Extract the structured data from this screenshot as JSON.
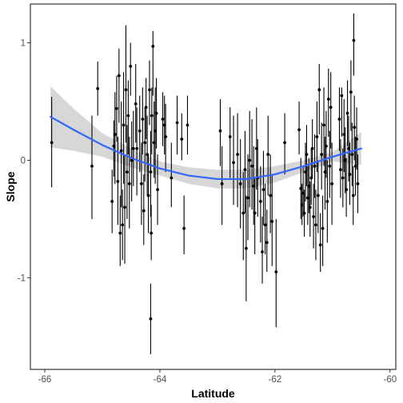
{
  "chart_data": {
    "type": "scatter",
    "title": "",
    "xlabel": "Latitude",
    "ylabel": "Slope",
    "xlim": [
      -66.25,
      -59.9
    ],
    "ylim": [
      -1.78,
      1.33
    ],
    "x_ticks": [
      -66,
      -64,
      -62,
      -60
    ],
    "y_ticks": [
      -1,
      0,
      1
    ],
    "grid": false,
    "colors": {
      "points": "#000000",
      "smooth_line": "#3366FF",
      "ribbon": "#BEBEBE",
      "axis": "#333333"
    },
    "points": [
      {
        "x": -65.88,
        "y": 0.15,
        "lo": -0.23,
        "hi": 0.54
      },
      {
        "x": -65.18,
        "y": -0.05,
        "lo": -0.5,
        "hi": 0.38
      },
      {
        "x": -65.08,
        "y": 0.61,
        "lo": 0.38,
        "hi": 0.84
      },
      {
        "x": -64.83,
        "y": -0.35,
        "lo": -0.62,
        "hi": -0.08
      },
      {
        "x": -64.8,
        "y": 0.12,
        "lo": -0.14,
        "hi": 0.34
      },
      {
        "x": -64.78,
        "y": 0.22,
        "lo": -0.2,
        "hi": 0.58
      },
      {
        "x": -64.75,
        "y": 0.44,
        "lo": 0.16,
        "hi": 0.72
      },
      {
        "x": -64.73,
        "y": -0.18,
        "lo": -0.55,
        "hi": 0.2
      },
      {
        "x": -64.71,
        "y": 0.72,
        "lo": 0.32,
        "hi": 0.95
      },
      {
        "x": -64.69,
        "y": -0.62,
        "lo": -0.9,
        "hi": -0.3
      },
      {
        "x": -64.67,
        "y": 0.08,
        "lo": -0.4,
        "hi": 0.5
      },
      {
        "x": -64.65,
        "y": -0.55,
        "lo": -0.85,
        "hi": -0.25
      },
      {
        "x": -64.63,
        "y": 0.3,
        "lo": -0.2,
        "hi": 0.75
      },
      {
        "x": -64.61,
        "y": -0.4,
        "lo": -0.88,
        "hi": 0.05
      },
      {
        "x": -64.59,
        "y": 0.6,
        "lo": 0.15,
        "hi": 1.15
      },
      {
        "x": -64.57,
        "y": -0.1,
        "lo": -0.5,
        "hi": 0.3
      },
      {
        "x": -64.55,
        "y": 0.38,
        "lo": 0.05,
        "hi": 0.68
      },
      {
        "x": -64.53,
        "y": -0.2,
        "lo": -0.58,
        "hi": 0.2
      },
      {
        "x": -64.51,
        "y": 0.8,
        "lo": 0.55,
        "hi": 1.0
      },
      {
        "x": -64.49,
        "y": 0.0,
        "lo": -0.35,
        "hi": 0.33
      },
      {
        "x": -64.46,
        "y": 0.1,
        "lo": -0.22,
        "hi": 0.42
      },
      {
        "x": -64.42,
        "y": 0.48,
        "lo": 0.15,
        "hi": 0.82
      },
      {
        "x": -64.4,
        "y": 0.1,
        "lo": -0.3,
        "hi": 0.45
      },
      {
        "x": -64.35,
        "y": 0.25,
        "lo": -0.1,
        "hi": 0.55
      },
      {
        "x": -64.32,
        "y": -0.2,
        "lo": -0.55,
        "hi": 0.15
      },
      {
        "x": -64.3,
        "y": 0.35,
        "lo": 0.05,
        "hi": 0.62
      },
      {
        "x": -64.28,
        "y": -0.43,
        "lo": -0.72,
        "hi": -0.12
      },
      {
        "x": -64.26,
        "y": 0.15,
        "lo": -0.18,
        "hi": 0.45
      },
      {
        "x": -64.24,
        "y": 0.45,
        "lo": 0.18,
        "hi": 0.7
      },
      {
        "x": -64.22,
        "y": 0.05,
        "lo": -0.3,
        "hi": 0.38
      },
      {
        "x": -64.2,
        "y": -0.3,
        "lo": -0.62,
        "hi": 0.05
      },
      {
        "x": -64.18,
        "y": 0.6,
        "lo": 0.3,
        "hi": 0.85
      },
      {
        "x": -64.16,
        "y": -0.1,
        "lo": -0.48,
        "hi": 0.25
      },
      {
        "x": -64.15,
        "y": -0.62,
        "lo": -0.85,
        "hi": -0.38
      },
      {
        "x": -64.14,
        "y": 0.38,
        "lo": 0.05,
        "hi": 0.62
      },
      {
        "x": -64.12,
        "y": 0.97,
        "lo": 0.55,
        "hi": 1.1
      },
      {
        "x": -64.1,
        "y": 0.15,
        "lo": -0.15,
        "hi": 0.5
      },
      {
        "x": -64.08,
        "y": 0.25,
        "lo": -0.2,
        "hi": 0.62
      },
      {
        "x": -64.06,
        "y": 0.4,
        "lo": 0.1,
        "hi": 0.7
      },
      {
        "x": -64.04,
        "y": -0.25,
        "lo": -0.55,
        "hi": 0.05
      },
      {
        "x": -64.16,
        "y": -1.35,
        "lo": -1.65,
        "hi": -1.05
      },
      {
        "x": -63.95,
        "y": 0.35,
        "lo": 0.12,
        "hi": 0.58
      },
      {
        "x": -63.92,
        "y": 0.3,
        "lo": 0.05,
        "hi": 0.55
      },
      {
        "x": -63.9,
        "y": 0.2,
        "lo": -0.1,
        "hi": 0.48
      },
      {
        "x": -63.8,
        "y": -0.15,
        "lo": -0.4,
        "hi": 0.15
      },
      {
        "x": -63.7,
        "y": 0.32,
        "lo": 0.05,
        "hi": 0.55
      },
      {
        "x": -63.62,
        "y": 0.18,
        "lo": 0.0,
        "hi": 0.4
      },
      {
        "x": -63.58,
        "y": -0.58,
        "lo": -0.8,
        "hi": -0.3
      },
      {
        "x": -63.52,
        "y": 0.3,
        "lo": 0.05,
        "hi": 0.55
      },
      {
        "x": -62.95,
        "y": 0.25,
        "lo": -0.05,
        "hi": 0.52
      },
      {
        "x": -62.92,
        "y": -0.2,
        "lo": -0.55,
        "hi": 0.12
      },
      {
        "x": -62.78,
        "y": 0.2,
        "lo": -0.15,
        "hi": 0.45
      },
      {
        "x": -62.72,
        "y": -0.02,
        "lo": -0.38,
        "hi": 0.38
      },
      {
        "x": -62.65,
        "y": 0.05,
        "lo": -0.4,
        "hi": 0.4
      },
      {
        "x": -62.6,
        "y": -0.2,
        "lo": -0.58,
        "hi": 0.18
      },
      {
        "x": -62.55,
        "y": -0.45,
        "lo": -0.85,
        "hi": -0.1
      },
      {
        "x": -62.52,
        "y": -0.08,
        "lo": -0.45,
        "hi": 0.25
      },
      {
        "x": -62.5,
        "y": -0.75,
        "lo": -1.2,
        "hi": -0.3
      },
      {
        "x": -62.47,
        "y": -0.32,
        "lo": -0.68,
        "hi": 0.05
      },
      {
        "x": -62.44,
        "y": 0.0,
        "lo": -0.4,
        "hi": 0.42
      },
      {
        "x": -62.4,
        "y": -0.05,
        "lo": -0.42,
        "hi": 0.35
      },
      {
        "x": -62.37,
        "y": -0.22,
        "lo": -0.55,
        "hi": 0.12
      },
      {
        "x": -62.35,
        "y": -0.45,
        "lo": -0.8,
        "hi": -0.15
      },
      {
        "x": -62.32,
        "y": 0.1,
        "lo": -0.25,
        "hi": 0.45
      },
      {
        "x": -62.3,
        "y": -0.15,
        "lo": -0.48,
        "hi": 0.18
      },
      {
        "x": -62.25,
        "y": -0.35,
        "lo": -0.7,
        "hi": -0.05
      },
      {
        "x": -62.22,
        "y": -0.78,
        "lo": -1.05,
        "hi": -0.48
      },
      {
        "x": -62.2,
        "y": -0.25,
        "lo": -0.55,
        "hi": 0.08
      },
      {
        "x": -62.17,
        "y": -0.55,
        "lo": -0.8,
        "hi": -0.2
      },
      {
        "x": -62.14,
        "y": -0.7,
        "lo": -0.95,
        "hi": -0.42
      },
      {
        "x": -62.12,
        "y": 0.05,
        "lo": -0.3,
        "hi": 0.38
      },
      {
        "x": -62.08,
        "y": -0.3,
        "lo": -0.62,
        "hi": 0.05
      },
      {
        "x": -62.05,
        "y": -0.52,
        "lo": -0.9,
        "hi": -0.12
      },
      {
        "x": -61.98,
        "y": -0.95,
        "lo": -1.42,
        "hi": -0.5
      },
      {
        "x": -61.83,
        "y": 0.15,
        "lo": -0.12,
        "hi": 0.4
      },
      {
        "x": -61.58,
        "y": 0.26,
        "lo": 0.05,
        "hi": 0.5
      },
      {
        "x": -61.55,
        "y": -0.24,
        "lo": -0.5,
        "hi": 0.02
      },
      {
        "x": -61.53,
        "y": -0.38,
        "lo": -0.55,
        "hi": -0.2
      },
      {
        "x": -61.51,
        "y": -0.28,
        "lo": -0.48,
        "hi": -0.05
      },
      {
        "x": -61.49,
        "y": -0.45,
        "lo": -0.65,
        "hi": -0.25
      },
      {
        "x": -61.47,
        "y": -0.1,
        "lo": -0.35,
        "hi": 0.15
      },
      {
        "x": -61.45,
        "y": 0.05,
        "lo": -0.22,
        "hi": 0.3
      },
      {
        "x": -61.43,
        "y": -0.32,
        "lo": -0.55,
        "hi": -0.05
      },
      {
        "x": -61.41,
        "y": -0.22,
        "lo": -0.45,
        "hi": 0.02
      },
      {
        "x": -61.39,
        "y": -0.4,
        "lo": -0.65,
        "hi": -0.18
      },
      {
        "x": -61.37,
        "y": -0.15,
        "lo": -0.38,
        "hi": 0.1
      },
      {
        "x": -61.35,
        "y": 0.1,
        "lo": -0.15,
        "hi": 0.35
      },
      {
        "x": -61.33,
        "y": -0.48,
        "lo": -0.75,
        "hi": -0.2
      },
      {
        "x": -61.31,
        "y": -0.05,
        "lo": -0.32,
        "hi": 0.22
      },
      {
        "x": -61.29,
        "y": -0.55,
        "lo": -0.85,
        "hi": -0.25
      },
      {
        "x": -61.27,
        "y": 0.2,
        "lo": -0.1,
        "hi": 0.5
      },
      {
        "x": -61.25,
        "y": -0.3,
        "lo": -0.62,
        "hi": 0.0
      },
      {
        "x": -61.23,
        "y": 0.6,
        "lo": 0.22,
        "hi": 0.82
      },
      {
        "x": -61.21,
        "y": -0.72,
        "lo": -0.95,
        "hi": -0.45
      },
      {
        "x": -61.19,
        "y": 0.05,
        "lo": -0.25,
        "hi": 0.32
      },
      {
        "x": -61.17,
        "y": -0.58,
        "lo": -0.9,
        "hi": -0.3
      },
      {
        "x": -61.15,
        "y": 0.3,
        "lo": -0.05,
        "hi": 0.62
      },
      {
        "x": -61.13,
        "y": -0.1,
        "lo": -0.42,
        "hi": 0.2
      },
      {
        "x": -61.11,
        "y": 0.12,
        "lo": -0.15,
        "hi": 0.42
      },
      {
        "x": -61.09,
        "y": -0.35,
        "lo": -0.7,
        "hi": 0.0
      },
      {
        "x": -61.07,
        "y": 0.52,
        "lo": 0.2,
        "hi": 0.78
      },
      {
        "x": -61.05,
        "y": -0.05,
        "lo": -0.32,
        "hi": 0.25
      },
      {
        "x": -61.03,
        "y": 0.45,
        "lo": 0.1,
        "hi": 0.75
      },
      {
        "x": -61.01,
        "y": -0.2,
        "lo": -0.55,
        "hi": 0.15
      },
      {
        "x": -60.88,
        "y": 0.35,
        "lo": 0.08,
        "hi": 0.62
      },
      {
        "x": -60.86,
        "y": -0.08,
        "lo": -0.32,
        "hi": 0.18
      },
      {
        "x": -60.84,
        "y": 0.55,
        "lo": 0.2,
        "hi": 0.62
      },
      {
        "x": -60.82,
        "y": -0.15,
        "lo": -0.4,
        "hi": 0.1
      },
      {
        "x": -60.8,
        "y": 0.22,
        "lo": -0.1,
        "hi": 0.52
      },
      {
        "x": -60.78,
        "y": 0.0,
        "lo": -0.28,
        "hi": 0.28
      },
      {
        "x": -60.76,
        "y": -0.25,
        "lo": -0.48,
        "hi": 0.02
      },
      {
        "x": -60.74,
        "y": 0.4,
        "lo": 0.12,
        "hi": 0.68
      },
      {
        "x": -60.72,
        "y": 0.1,
        "lo": -0.18,
        "hi": 0.38
      },
      {
        "x": -60.7,
        "y": -0.12,
        "lo": -0.38,
        "hi": 0.15
      },
      {
        "x": -60.68,
        "y": 0.58,
        "lo": 0.25,
        "hi": 0.85
      },
      {
        "x": -60.66,
        "y": 0.05,
        "lo": -0.22,
        "hi": 0.32
      },
      {
        "x": -60.64,
        "y": -0.3,
        "lo": -0.55,
        "hi": -0.05
      },
      {
        "x": -60.62,
        "y": 0.28,
        "lo": 0.0,
        "hi": 0.55
      },
      {
        "x": -60.6,
        "y": -0.05,
        "lo": -0.3,
        "hi": 0.2
      },
      {
        "x": -60.63,
        "y": 1.02,
        "lo": 0.72,
        "hi": 1.25
      },
      {
        "x": -60.58,
        "y": 0.18,
        "lo": -0.08,
        "hi": 0.45
      },
      {
        "x": -60.56,
        "y": -0.2,
        "lo": -0.45,
        "hi": 0.05
      }
    ],
    "smooth": {
      "x": [
        -65.9,
        -65.5,
        -65.0,
        -64.5,
        -64.0,
        -63.5,
        -63.0,
        -62.5,
        -62.0,
        -61.5,
        -61.0,
        -60.5
      ],
      "y": [
        0.37,
        0.26,
        0.13,
        0.02,
        -0.07,
        -0.13,
        -0.16,
        -0.16,
        -0.12,
        -0.05,
        0.03,
        0.1
      ],
      "lo": [
        0.11,
        0.08,
        0.03,
        -0.06,
        -0.13,
        -0.2,
        -0.24,
        -0.24,
        -0.19,
        -0.1,
        -0.01,
        -0.04
      ],
      "hi": [
        0.63,
        0.44,
        0.23,
        0.1,
        -0.01,
        -0.06,
        -0.08,
        -0.08,
        -0.05,
        0.0,
        0.07,
        0.24
      ]
    }
  }
}
